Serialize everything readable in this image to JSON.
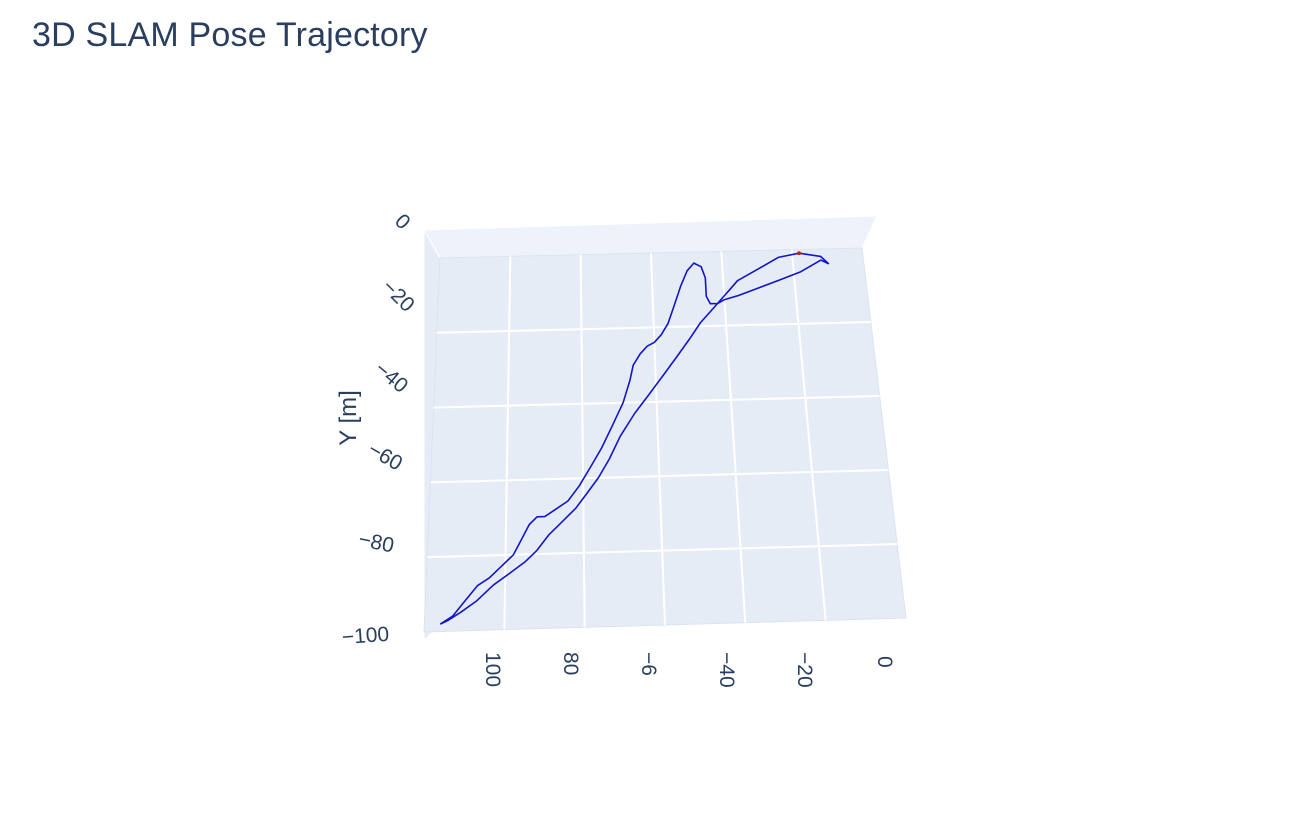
{
  "title": "3D SLAM Pose Trajectory",
  "chart_data": {
    "type": "line",
    "title": "3D SLAM Pose Trajectory",
    "ylabel": "Y [m]",
    "xlabel": "",
    "colors": {
      "trajectory": "#1414c8",
      "paper": "#ffffff",
      "plot_bg": "#e5ecf6",
      "grid": "#ffffff",
      "text": "#2a3f5f"
    },
    "y_ticks": [
      "0",
      "−20",
      "−40",
      "−60",
      "−80",
      "−100"
    ],
    "x_ticks": [
      "100",
      "80",
      "−6",
      "−40",
      "−20",
      "0"
    ],
    "xlim": [
      -120,
      0
    ],
    "ylim": [
      -100,
      0
    ],
    "grid": true,
    "legend": "none",
    "series": [
      {
        "x": [
          -116,
          -113,
          -110,
          -107,
          -104,
          -101,
          -98,
          -96,
          -94,
          -92,
          -90,
          -87,
          -84,
          -81,
          -78,
          -75,
          -72,
          -69,
          -67,
          -66,
          -64,
          -62,
          -60,
          -58,
          -56,
          -54,
          -52,
          -50,
          -48,
          -46,
          -45,
          -45,
          -45,
          -44,
          -42,
          -40,
          -38,
          -36,
          -30,
          -24,
          -18,
          -12,
          -10,
          -12,
          -18,
          -24,
          -30,
          -36,
          -40,
          -42,
          -44,
          -47,
          -50,
          -54,
          -58,
          -62,
          -66,
          -70,
          -73,
          -76,
          -79,
          -82,
          -86,
          -89,
          -92,
          -95,
          -99,
          -103,
          -107,
          -111,
          -114,
          -116
        ],
        "y": [
          -98,
          -96,
          -92,
          -88,
          -86,
          -83,
          -80,
          -76,
          -72,
          -70,
          -70,
          -68,
          -66,
          -62,
          -57,
          -52,
          -46,
          -40,
          -34,
          -30,
          -27,
          -25,
          -24,
          -22,
          -19,
          -14,
          -9,
          -5,
          -3,
          -4,
          -7,
          -10,
          -12,
          -14,
          -14,
          -12,
          -10,
          -8,
          -5,
          -2,
          -1,
          -2,
          -4,
          -3,
          -6,
          -8,
          -10,
          -12,
          -13,
          -14,
          -16,
          -19,
          -23,
          -28,
          -33,
          -38,
          -43,
          -49,
          -55,
          -60,
          -64,
          -68,
          -72,
          -75,
          -79,
          -82,
          -85,
          -88,
          -92,
          -95,
          -97,
          -98
        ]
      }
    ]
  }
}
